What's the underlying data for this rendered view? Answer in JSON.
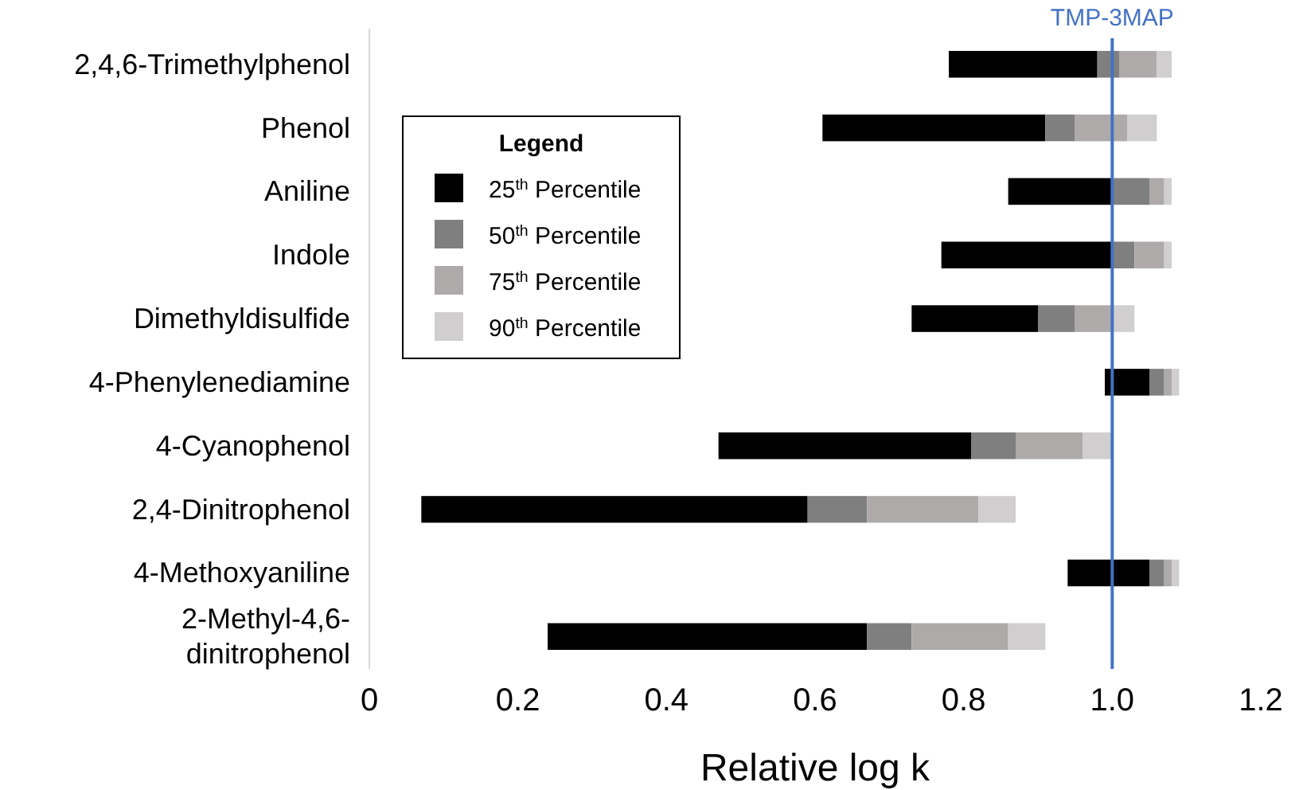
{
  "chart_data": {
    "type": "bar",
    "orientation": "horizontal",
    "xlabel": "Relative log k",
    "legend_title": "Legend",
    "legend": "top left",
    "categories": [
      "2,4,6-Trimethylphenol",
      "Phenol",
      "Aniline",
      "Indole",
      "Dimethyldisulfide",
      "4-Phenylenediamine",
      "4-Cyanophenol",
      "2,4-Dinitrophenol",
      "4-Methoxyaniline",
      "2-Methyl-4,6-dinitrophenol"
    ],
    "series": [
      {
        "name": "25$^{th}$ Percentile",
        "color": "#000000",
        "base": [
          0.78,
          0.61,
          0.86,
          0.77,
          0.73,
          0.99,
          0.47,
          0.07,
          0.94,
          0.24
        ],
        "values": [
          0.2,
          0.3,
          0.14,
          0.23,
          0.17,
          0.06,
          0.34,
          0.52,
          0.11,
          0.43
        ]
      },
      {
        "name": "50$^{th}$ Percentile",
        "color": "#7f7f7f",
        "base": [
          0.98,
          0.91,
          1.0,
          1.0,
          0.9,
          1.05,
          0.81,
          0.59,
          1.05,
          0.67
        ],
        "values": [
          0.03,
          0.04,
          0.05,
          0.03,
          0.05,
          0.02,
          0.06,
          0.08,
          0.02,
          0.06
        ]
      },
      {
        "name": "75$^{th}$ Percentile",
        "color": "#aeaaaa",
        "base": [
          1.01,
          0.95,
          1.05,
          1.03,
          0.95,
          1.07,
          0.87,
          0.67,
          1.07,
          0.73
        ],
        "values": [
          0.05,
          0.07,
          0.02,
          0.04,
          0.05,
          0.01,
          0.09,
          0.15,
          0.01,
          0.13
        ]
      },
      {
        "name": "90$^{th}$ Percentile",
        "color": "#d0cece",
        "base": [
          1.06,
          1.02,
          1.07,
          1.07,
          1.0,
          1.08,
          0.96,
          0.82,
          1.08,
          0.86
        ],
        "values": [
          0.02,
          0.04,
          0.01,
          0.01,
          0.03,
          0.01,
          0.04,
          0.05,
          0.01,
          0.05
        ]
      }
    ],
    "xlim": [
      0,
      1.2
    ],
    "xticks": [
      0,
      0.2,
      0.4,
      0.6,
      0.8,
      {
        "value": 1,
        "label": "1.0"
      },
      1.2
    ],
    "ref_lines": [
      {
        "axis": "x",
        "value": 1,
        "label": "TMP-3MAP",
        "color": "#4472c4"
      }
    ]
  }
}
